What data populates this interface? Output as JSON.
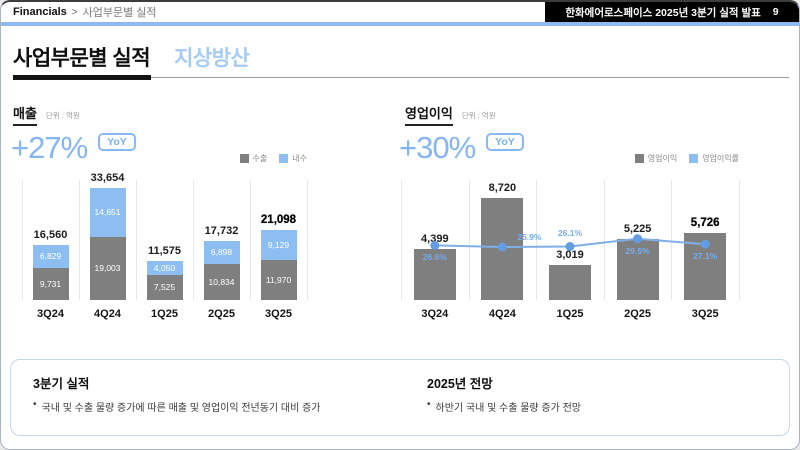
{
  "header": {
    "breadcrumb_section": "Financials",
    "breadcrumb_separator": ">",
    "breadcrumb_page": "사업부문별 실적",
    "banner_title": "한화에어로스페이스 2025년 3분기 실적 발표",
    "page_number": "9"
  },
  "title": {
    "main": "사업부문별 실적",
    "segment": "지상방산"
  },
  "revenue": {
    "section_label": "매출",
    "unit_label": "단위 : 억원",
    "growth": "+27%",
    "badge": "YoY",
    "legend": [
      {
        "label": "수출",
        "color": "#7F7F7F"
      },
      {
        "label": "내수",
        "color": "#8CBEF2"
      }
    ]
  },
  "profit": {
    "section_label": "영업이익",
    "unit_label": "단위 : 억원",
    "growth": "+30%",
    "badge": "YoY",
    "legend": [
      {
        "label": "영업이익",
        "color": "#7F7F7F"
      },
      {
        "label": "영업이익률",
        "color": "#8CBEF2"
      }
    ]
  },
  "chart_data": [
    {
      "type": "bar",
      "subtype": "stacked",
      "title": "매출",
      "unit": "억원",
      "yoy": "+27%",
      "categories": [
        "3Q24",
        "4Q24",
        "1Q25",
        "2Q25",
        "3Q25"
      ],
      "series": [
        {
          "name": "수출",
          "values": [
            9731,
            19003,
            7525,
            10834,
            11970
          ],
          "color": "#7F7F7F"
        },
        {
          "name": "내수",
          "values": [
            6829,
            14651,
            4050,
            6898,
            9129
          ],
          "color": "#8CBEF2"
        }
      ],
      "totals": [
        16560,
        33654,
        11575,
        17732,
        21098
      ],
      "highlight_category": "3Q25",
      "legend_position": "top-right",
      "grid": "vertical-separators"
    },
    {
      "type": "bar",
      "subtype": "bar+line",
      "title": "영업이익",
      "unit": "억원",
      "yoy": "+30%",
      "categories": [
        "3Q24",
        "4Q24",
        "1Q25",
        "2Q25",
        "3Q25"
      ],
      "series": [
        {
          "name": "영업이익",
          "type": "bar",
          "values": [
            4399,
            8720,
            3019,
            5225,
            5726
          ],
          "color": "#7F7F7F"
        },
        {
          "name": "영업이익률",
          "type": "line",
          "values_pct": [
            26.6,
            25.9,
            26.1,
            29.5,
            27.1
          ],
          "color": "#7FAEE8"
        }
      ],
      "highlight_category": "3Q25",
      "legend_position": "top-right",
      "grid": "vertical-separators"
    }
  ],
  "summary": {
    "bullet_marker": "•",
    "left": {
      "heading": "3분기 실적",
      "bullets": [
        "국내 및 수출 물량 증가에 따른 매출 및 영업이익 전년동기 대비 증가"
      ]
    },
    "right": {
      "heading": "2025년 전망",
      "bullets": [
        "하반기 국내 및 수출 물량 증가 전망"
      ]
    }
  },
  "colors": {
    "accent_blue": "#85B5F2",
    "light_blue_bar": "#8CBEF2",
    "gray_bar": "#7F7F7F",
    "line_blue": "#7FAEE8",
    "segment_title_blue": "#A7CBF7",
    "header_rule_blue": "#8FB9EF",
    "banner_bg": "#000000",
    "summary_border": "#C9D6E8"
  }
}
